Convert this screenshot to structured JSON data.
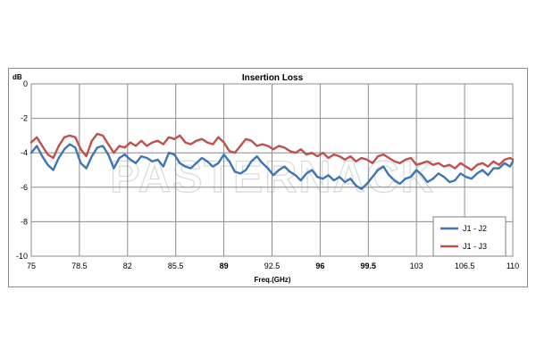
{
  "watermark": "PASTERNACK",
  "chart_data": {
    "type": "line",
    "title": "Insertion Loss",
    "xlabel": "Freq.(GHz)",
    "ylabel": "dB",
    "xlim": [
      75,
      110
    ],
    "ylim": [
      -10,
      0
    ],
    "xticks": [
      75,
      78.5,
      82,
      85.5,
      89,
      92.5,
      96,
      99.5,
      103,
      106.5,
      110
    ],
    "xtick_labels": [
      "75",
      "78.5",
      "82",
      "85.5",
      "89",
      "92.5",
      "96",
      "99.5",
      "103",
      "106.5",
      "110"
    ],
    "yticks": [
      0,
      -2,
      -4,
      -6,
      -8,
      -10
    ],
    "ytick_labels": [
      "0",
      "-2",
      "-4",
      "-6",
      "-8",
      "-10"
    ],
    "grid": true,
    "legend_position": "bottom-right",
    "series": [
      {
        "name": "J1 - J2",
        "color": "#3f75b5",
        "x": [
          75,
          75.4,
          75.8,
          76.2,
          76.6,
          77,
          77.4,
          77.8,
          78.2,
          78.6,
          79,
          79.4,
          79.8,
          80.2,
          80.6,
          81,
          81.4,
          81.8,
          82.2,
          82.6,
          83,
          83.4,
          83.8,
          84.2,
          84.6,
          85,
          85.4,
          85.8,
          86.2,
          86.6,
          87,
          87.4,
          87.8,
          88.2,
          88.6,
          89,
          89.4,
          89.8,
          90.2,
          90.6,
          91,
          91.4,
          91.8,
          92.2,
          92.6,
          93,
          93.4,
          93.8,
          94.2,
          94.6,
          95,
          95.4,
          95.8,
          96.2,
          96.6,
          97,
          97.4,
          97.8,
          98.2,
          98.6,
          99,
          99.4,
          99.8,
          100.2,
          100.6,
          101,
          101.4,
          101.8,
          102.2,
          102.6,
          103,
          103.4,
          103.8,
          104.2,
          104.6,
          105,
          105.4,
          105.8,
          106.2,
          106.6,
          107,
          107.4,
          107.8,
          108.2,
          108.6,
          109,
          109.4,
          109.8,
          110
        ],
        "y": [
          -4.0,
          -3.6,
          -4.2,
          -4.7,
          -5.0,
          -4.3,
          -3.8,
          -3.5,
          -3.7,
          -4.6,
          -4.9,
          -4.2,
          -3.7,
          -3.6,
          -4.1,
          -4.9,
          -4.3,
          -4.1,
          -4.4,
          -4.6,
          -4.2,
          -4.3,
          -4.5,
          -4.4,
          -4.8,
          -4.0,
          -4.1,
          -4.6,
          -4.8,
          -4.9,
          -4.6,
          -4.3,
          -4.5,
          -4.8,
          -4.6,
          -4.1,
          -4.5,
          -5.1,
          -5.2,
          -5.0,
          -4.5,
          -4.2,
          -4.6,
          -4.9,
          -5.3,
          -5.0,
          -4.8,
          -5.1,
          -5.3,
          -5.6,
          -5.2,
          -5.0,
          -5.4,
          -5.5,
          -5.3,
          -5.6,
          -5.4,
          -5.7,
          -5.5,
          -5.9,
          -6.1,
          -5.8,
          -5.4,
          -5.0,
          -4.8,
          -5.3,
          -5.6,
          -5.8,
          -5.5,
          -5.4,
          -5.0,
          -5.3,
          -5.7,
          -5.5,
          -5.2,
          -5.4,
          -5.7,
          -5.6,
          -5.2,
          -5.4,
          -5.5,
          -5.2,
          -5.0,
          -5.3,
          -4.9,
          -4.9,
          -4.6,
          -4.8,
          -4.5
        ]
      },
      {
        "name": "J1 - J3",
        "color": "#c0504d",
        "x": [
          75,
          75.4,
          75.8,
          76.2,
          76.6,
          77,
          77.4,
          77.8,
          78.2,
          78.6,
          79,
          79.4,
          79.8,
          80.2,
          80.6,
          81,
          81.4,
          81.8,
          82.2,
          82.6,
          83,
          83.4,
          83.8,
          84.2,
          84.6,
          85,
          85.4,
          85.8,
          86.2,
          86.6,
          87,
          87.4,
          87.8,
          88.2,
          88.6,
          89,
          89.4,
          89.8,
          90.2,
          90.6,
          91,
          91.4,
          91.8,
          92.2,
          92.6,
          93,
          93.4,
          93.8,
          94.2,
          94.6,
          95,
          95.4,
          95.8,
          96.2,
          96.6,
          97,
          97.4,
          97.8,
          98.2,
          98.6,
          99,
          99.4,
          99.8,
          100.2,
          100.6,
          101,
          101.4,
          101.8,
          102.2,
          102.6,
          103,
          103.4,
          103.8,
          104.2,
          104.6,
          105,
          105.4,
          105.8,
          106.2,
          106.6,
          107,
          107.4,
          107.8,
          108.2,
          108.6,
          109,
          109.4,
          109.8,
          110
        ],
        "y": [
          -3.4,
          -3.1,
          -3.6,
          -4.1,
          -4.3,
          -3.6,
          -3.1,
          -3.0,
          -3.1,
          -3.8,
          -4.2,
          -3.3,
          -2.9,
          -3.0,
          -3.5,
          -4.0,
          -3.6,
          -3.7,
          -3.4,
          -3.6,
          -3.3,
          -3.6,
          -3.4,
          -3.3,
          -3.5,
          -3.1,
          -3.2,
          -3.0,
          -3.4,
          -3.5,
          -3.3,
          -3.2,
          -3.4,
          -3.5,
          -3.1,
          -3.4,
          -3.9,
          -4.0,
          -3.6,
          -3.2,
          -3.3,
          -3.6,
          -3.5,
          -3.6,
          -3.8,
          -3.6,
          -3.7,
          -3.9,
          -4.0,
          -3.8,
          -4.1,
          -4.0,
          -4.2,
          -4.0,
          -4.3,
          -4.1,
          -4.2,
          -4.4,
          -4.2,
          -4.5,
          -4.3,
          -4.4,
          -4.6,
          -4.2,
          -4.1,
          -4.3,
          -4.5,
          -4.6,
          -4.4,
          -4.3,
          -4.7,
          -4.6,
          -4.5,
          -4.7,
          -4.6,
          -4.8,
          -4.7,
          -4.9,
          -4.6,
          -4.8,
          -5.0,
          -4.7,
          -4.6,
          -4.8,
          -4.5,
          -4.7,
          -4.4,
          -4.3,
          -4.4
        ]
      }
    ]
  }
}
